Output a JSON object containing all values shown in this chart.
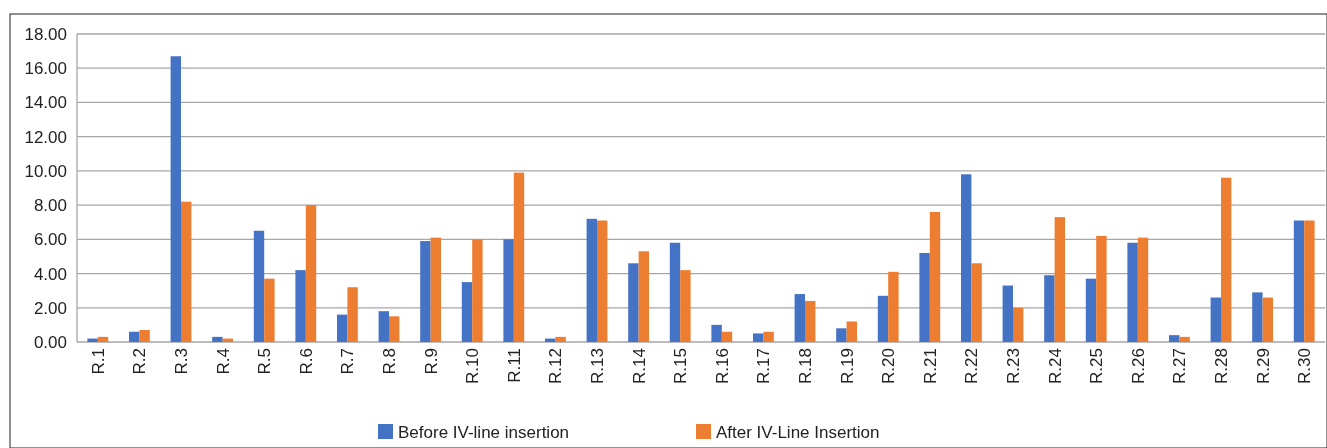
{
  "chart_data": {
    "type": "bar",
    "categories": [
      "R.1",
      "R.2",
      "R.3",
      "R.4",
      "R.5",
      "R.6",
      "R.7",
      "R.8",
      "R.9",
      "R.10",
      "R.11",
      "R.12",
      "R.13",
      "R.14",
      "R.15",
      "R.16",
      "R.17",
      "R.18",
      "R.19",
      "R.20",
      "R.21",
      "R.22",
      "R.23",
      "R.24",
      "R.25",
      "R.26",
      "R.27",
      "R.28",
      "R.29",
      "R.30"
    ],
    "series": [
      {
        "name": "Before IV-line insertion",
        "color": "#4472c4",
        "values": [
          0.2,
          0.6,
          16.7,
          0.3,
          6.5,
          4.2,
          1.6,
          1.8,
          5.9,
          3.5,
          6.0,
          0.2,
          7.2,
          4.6,
          5.8,
          1.0,
          0.5,
          2.8,
          0.8,
          2.7,
          5.2,
          9.8,
          3.3,
          3.9,
          3.7,
          5.8,
          0.4,
          2.6,
          2.9,
          7.1
        ]
      },
      {
        "name": "After IV-Line Insertion",
        "color": "#ed7d31",
        "values": [
          0.3,
          0.7,
          8.2,
          0.2,
          3.7,
          8.0,
          3.2,
          1.5,
          6.1,
          6.0,
          9.9,
          0.3,
          7.1,
          5.3,
          4.2,
          0.6,
          0.6,
          2.4,
          1.2,
          4.1,
          7.6,
          4.6,
          2.0,
          7.3,
          6.2,
          6.1,
          0.3,
          9.6,
          2.6,
          7.1
        ]
      }
    ],
    "ylim": [
      0,
      18
    ],
    "yticks": [
      {
        "value": 0,
        "label": "0.00"
      },
      {
        "value": 2,
        "label": "2.00"
      },
      {
        "value": 4,
        "label": "4.00"
      },
      {
        "value": 6,
        "label": "6.00"
      },
      {
        "value": 8,
        "label": "8.00"
      },
      {
        "value": 10,
        "label": "10.00"
      },
      {
        "value": 12,
        "label": "12.00"
      },
      {
        "value": 14,
        "label": "14.00"
      },
      {
        "value": 16,
        "label": "16.00"
      },
      {
        "value": 18,
        "label": "18.00"
      }
    ],
    "grid": "y",
    "legend": "bottom"
  }
}
